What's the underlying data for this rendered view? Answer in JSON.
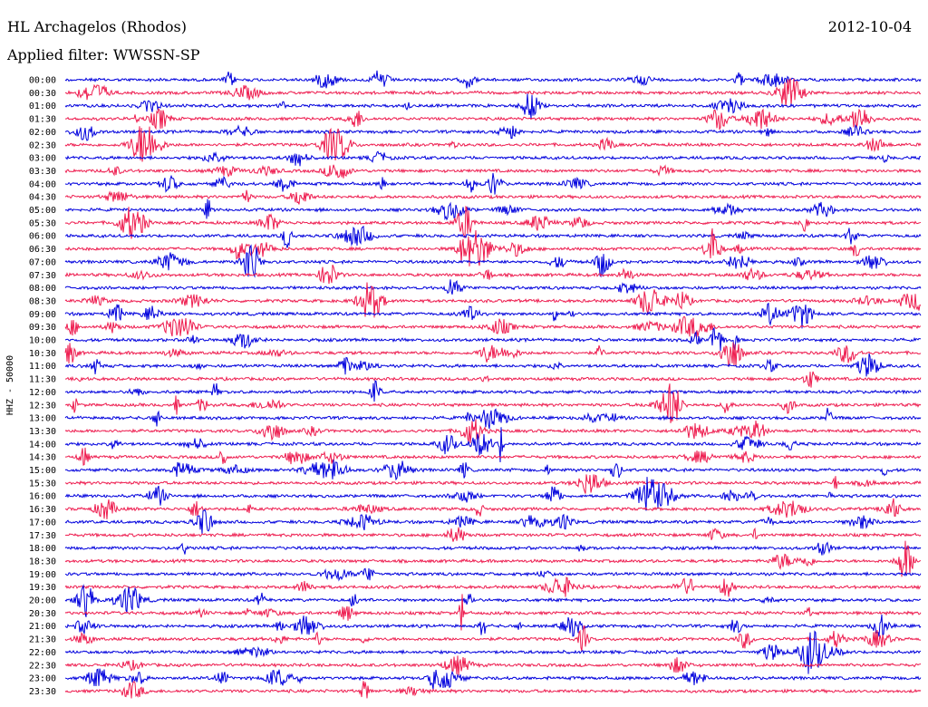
{
  "header": {
    "station": "HL Archagelos (Rhodos)",
    "date": "2012-10-04",
    "filter": "Applied filter: WWSSN-SP"
  },
  "chart_data": {
    "type": "line",
    "title": "HL Archagelos (Rhodos)",
    "subtitle": "Applied filter: WWSSN-SP",
    "ylabel": "HHZ - 50000",
    "xlabel": "",
    "grid": false,
    "legend": "none",
    "colors": [
      "#0000dd",
      "#ee1c4f"
    ],
    "rows": [
      "00:00",
      "00:30",
      "01:00",
      "01:30",
      "02:00",
      "02:30",
      "03:00",
      "03:30",
      "04:00",
      "04:30",
      "05:00",
      "05:30",
      "06:00",
      "06:30",
      "07:00",
      "07:30",
      "08:00",
      "08:30",
      "09:00",
      "09:30",
      "10:00",
      "10:30",
      "11:00",
      "11:30",
      "12:00",
      "12:30",
      "13:00",
      "13:30",
      "14:00",
      "14:30",
      "15:00",
      "15:30",
      "16:00",
      "16:30",
      "17:00",
      "17:30",
      "18:00",
      "18:30",
      "19:00",
      "19:30",
      "20:00",
      "20:30",
      "21:00",
      "21:30",
      "22:00",
      "22:30",
      "23:00",
      "23:30"
    ],
    "trace_end_fraction": 1.0
  }
}
